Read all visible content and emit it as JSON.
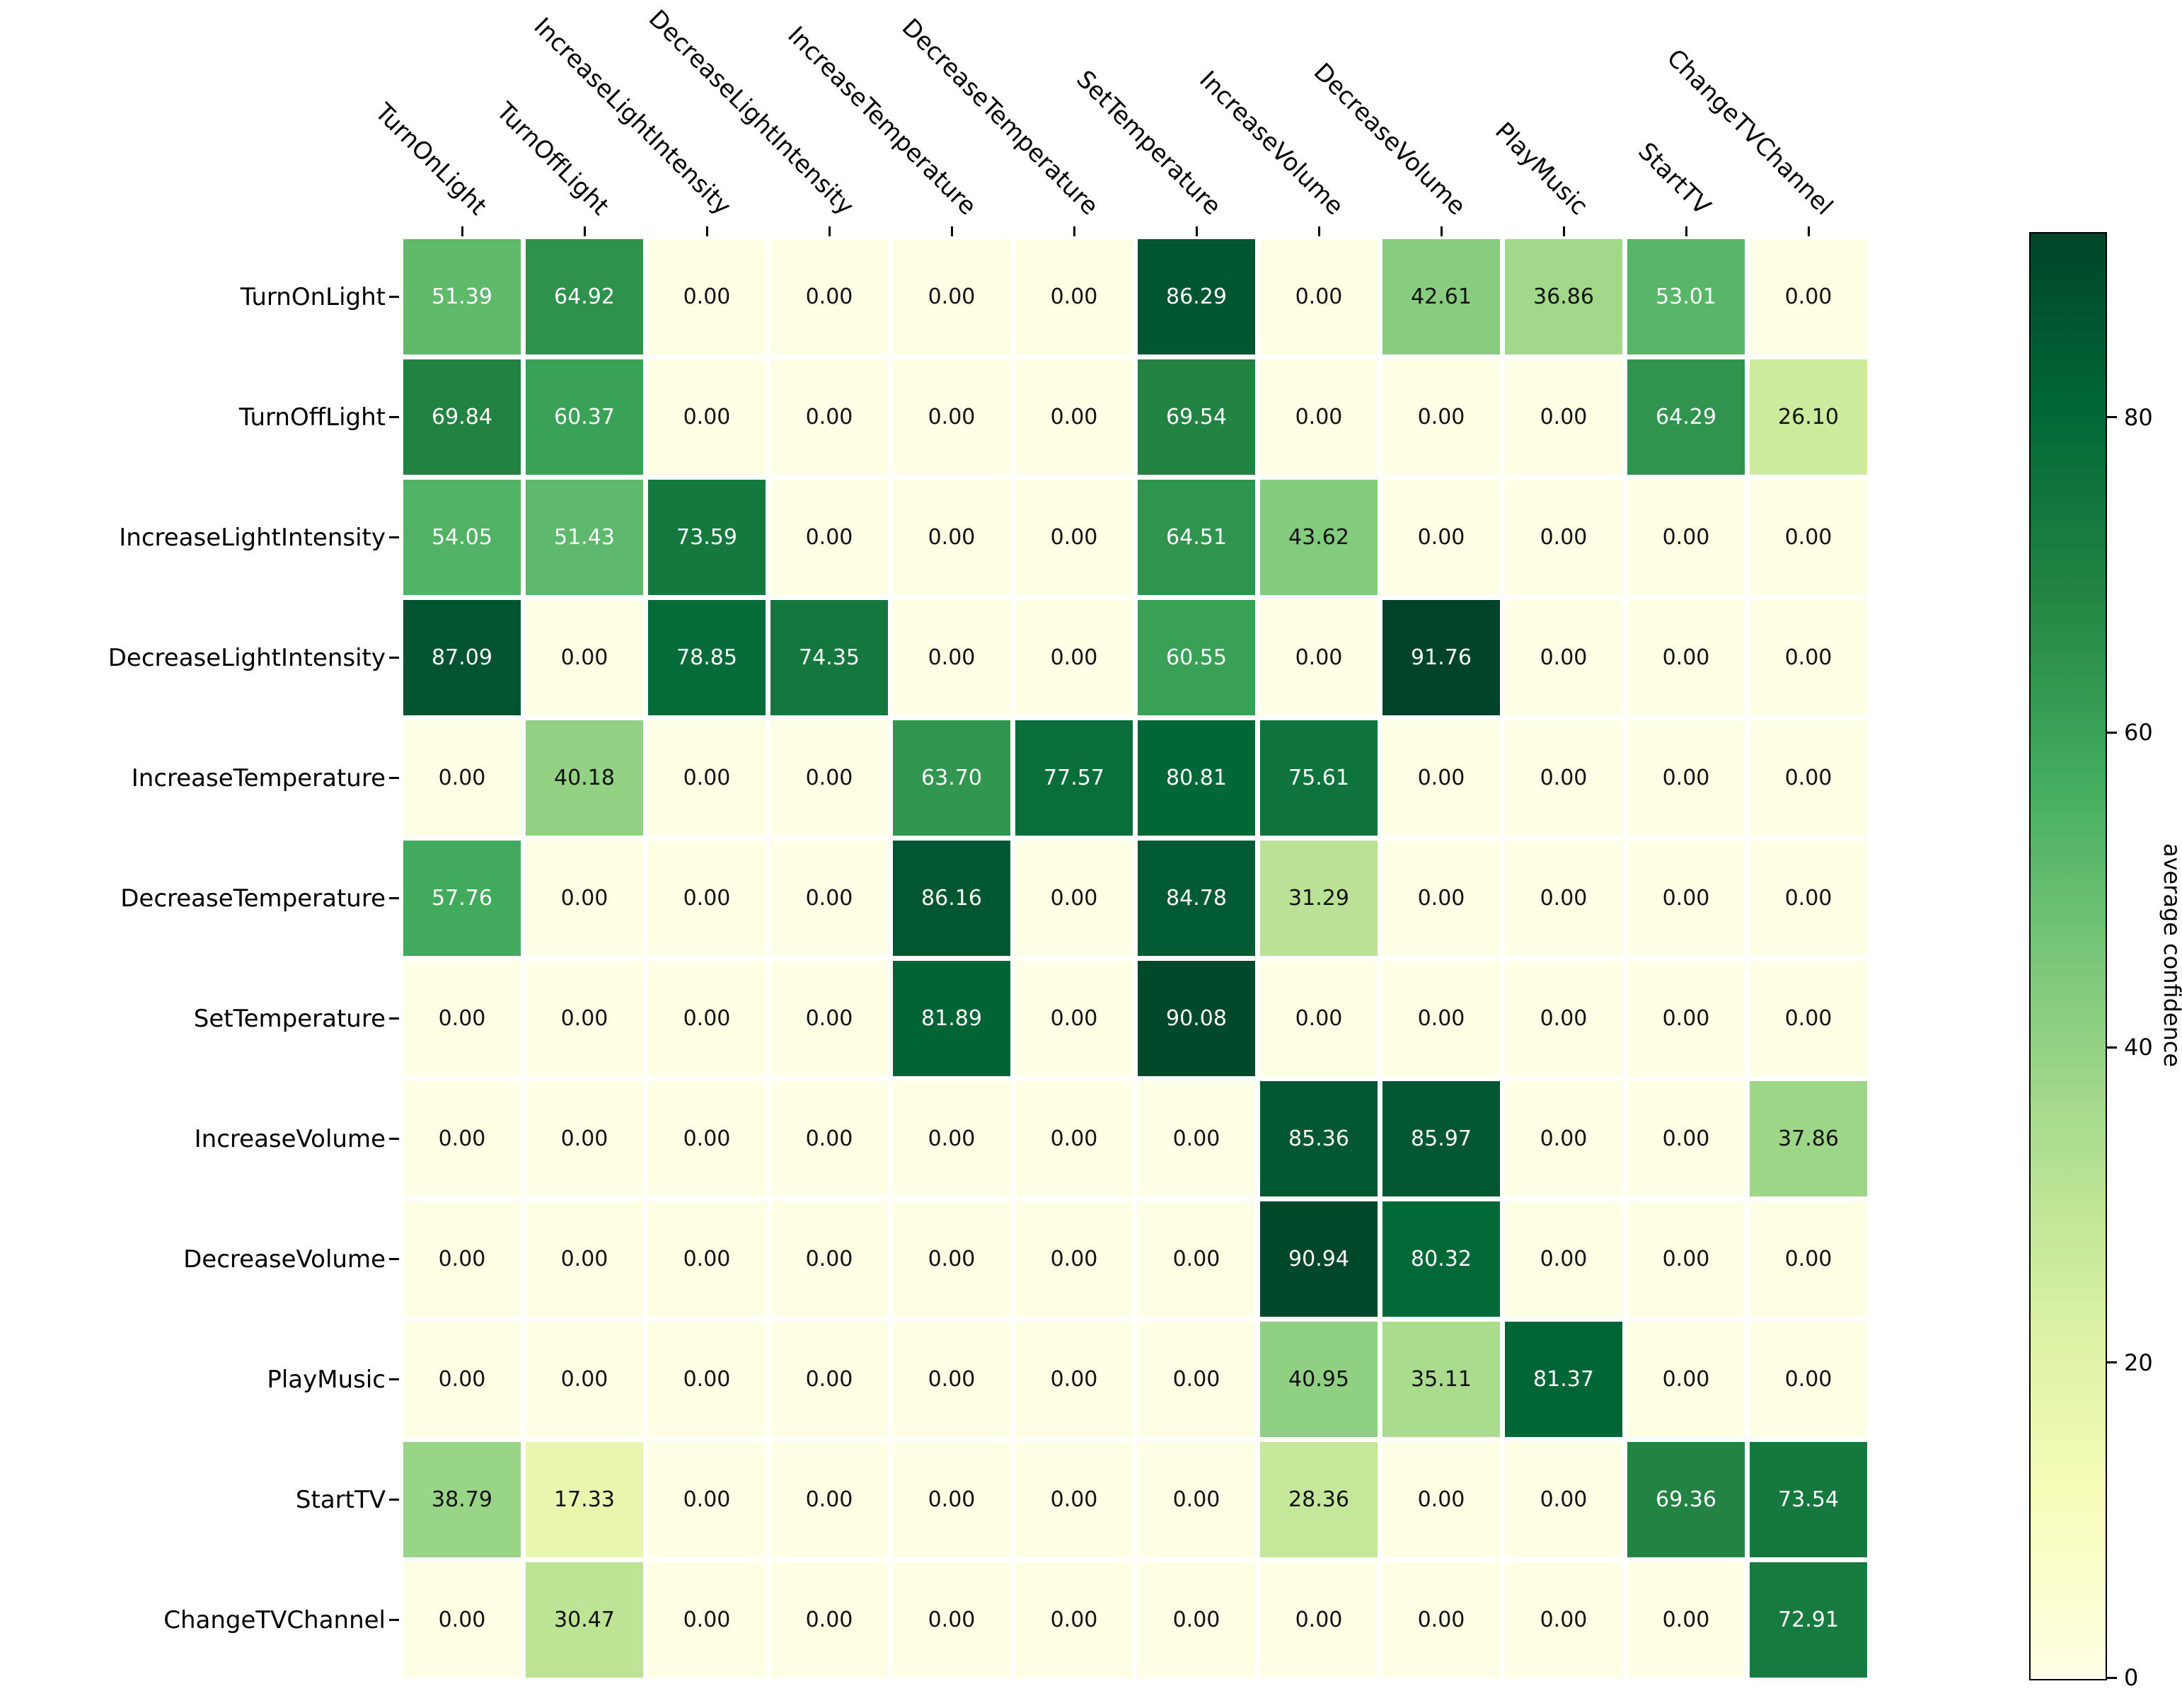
{
  "chart_data": {
    "type": "heatmap",
    "title": "",
    "x_labels": [
      "TurnOnLight",
      "TurnOffLight",
      "IncreaseLightIntensity",
      "DecreaseLightIntensity",
      "IncreaseTemperature",
      "DecreaseTemperature",
      "SetTemperature",
      "IncreaseVolume",
      "DecreaseVolume",
      "PlayMusic",
      "StartTV",
      "ChangeTVChannel"
    ],
    "y_labels": [
      "TurnOnLight",
      "TurnOffLight",
      "IncreaseLightIntensity",
      "DecreaseLightIntensity",
      "IncreaseTemperature",
      "DecreaseTemperature",
      "SetTemperature",
      "IncreaseVolume",
      "DecreaseVolume",
      "PlayMusic",
      "StartTV",
      "ChangeTVChannel"
    ],
    "matrix": [
      [
        51.39,
        64.92,
        0.0,
        0.0,
        0.0,
        0.0,
        86.29,
        0.0,
        42.61,
        36.86,
        53.01,
        0.0
      ],
      [
        69.84,
        60.37,
        0.0,
        0.0,
        0.0,
        0.0,
        69.54,
        0.0,
        0.0,
        0.0,
        64.29,
        26.1
      ],
      [
        54.05,
        51.43,
        73.59,
        0.0,
        0.0,
        0.0,
        64.51,
        43.62,
        0.0,
        0.0,
        0.0,
        0.0
      ],
      [
        87.09,
        0.0,
        78.85,
        74.35,
        0.0,
        0.0,
        60.55,
        0.0,
        91.76,
        0.0,
        0.0,
        0.0
      ],
      [
        0.0,
        40.18,
        0.0,
        0.0,
        63.7,
        77.57,
        80.81,
        75.61,
        0.0,
        0.0,
        0.0,
        0.0
      ],
      [
        57.76,
        0.0,
        0.0,
        0.0,
        86.16,
        0.0,
        84.78,
        31.29,
        0.0,
        0.0,
        0.0,
        0.0
      ],
      [
        0.0,
        0.0,
        0.0,
        0.0,
        81.89,
        0.0,
        90.08,
        0.0,
        0.0,
        0.0,
        0.0,
        0.0
      ],
      [
        0.0,
        0.0,
        0.0,
        0.0,
        0.0,
        0.0,
        0.0,
        85.36,
        85.97,
        0.0,
        0.0,
        37.86
      ],
      [
        0.0,
        0.0,
        0.0,
        0.0,
        0.0,
        0.0,
        0.0,
        90.94,
        80.32,
        0.0,
        0.0,
        0.0
      ],
      [
        0.0,
        0.0,
        0.0,
        0.0,
        0.0,
        0.0,
        0.0,
        40.95,
        35.11,
        81.37,
        0.0,
        0.0
      ],
      [
        38.79,
        17.33,
        0.0,
        0.0,
        0.0,
        0.0,
        0.0,
        28.36,
        0.0,
        0.0,
        69.36,
        73.54
      ],
      [
        0.0,
        30.47,
        0.0,
        0.0,
        0.0,
        0.0,
        0.0,
        0.0,
        0.0,
        0.0,
        0.0,
        72.91
      ]
    ],
    "value_format_decimals": 2,
    "annotated": true,
    "colorbar": {
      "label": "average confidence",
      "ticks": [
        0,
        20,
        40,
        60,
        80
      ],
      "vmin": 0,
      "vmax": 91.76,
      "colormap": "YlGn"
    },
    "colormap_stops": [
      {
        "pos": 0.0,
        "hex": "#ffffe5"
      },
      {
        "pos": 0.12549,
        "hex": "#f7fcb9"
      },
      {
        "pos": 0.25098,
        "hex": "#d9f0a3"
      },
      {
        "pos": 0.37647,
        "hex": "#addd8e"
      },
      {
        "pos": 0.50196,
        "hex": "#78c679"
      },
      {
        "pos": 0.62745,
        "hex": "#41ab5d"
      },
      {
        "pos": 0.75294,
        "hex": "#238443"
      },
      {
        "pos": 0.87843,
        "hex": "#006837"
      },
      {
        "pos": 1.0,
        "hex": "#004529"
      }
    ],
    "annot_text_dark": "#111111",
    "annot_text_light": "#ffffff",
    "background": "#ffffff"
  }
}
